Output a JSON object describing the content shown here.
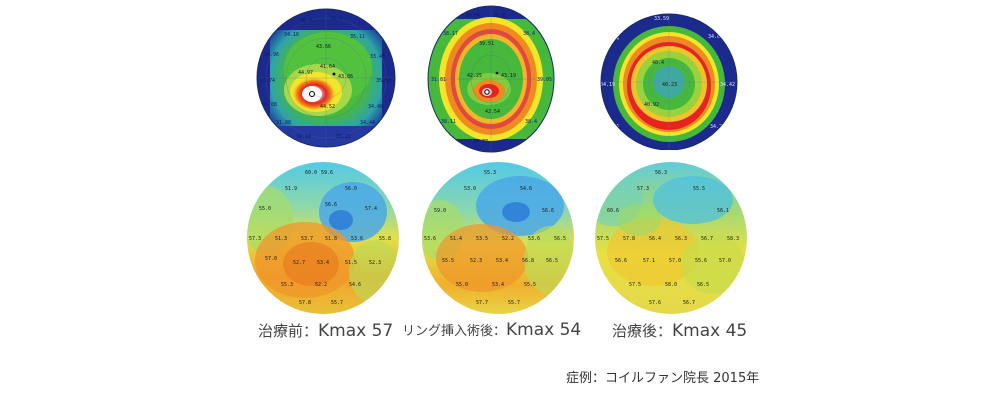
{
  "captions": [
    {
      "prefix": "治療前：",
      "kmax": "Kmax 57"
    },
    {
      "prefix": "リング挿入術後：",
      "kmax": "Kmax 54"
    },
    {
      "prefix": "治療後：",
      "kmax": "Kmax 45"
    }
  ],
  "footnote": "症例：コイルファン院長  2015年",
  "colors": {
    "navy": "#1b2a8c",
    "green": "#3fae3a",
    "yellow": "#f3e52a",
    "red": "#e8231f",
    "cyan": "#4fc9e9",
    "orange": "#f08a1e"
  },
  "icons": [
    "corneal-topography-map",
    "corneal-pachymetry-map"
  ]
}
